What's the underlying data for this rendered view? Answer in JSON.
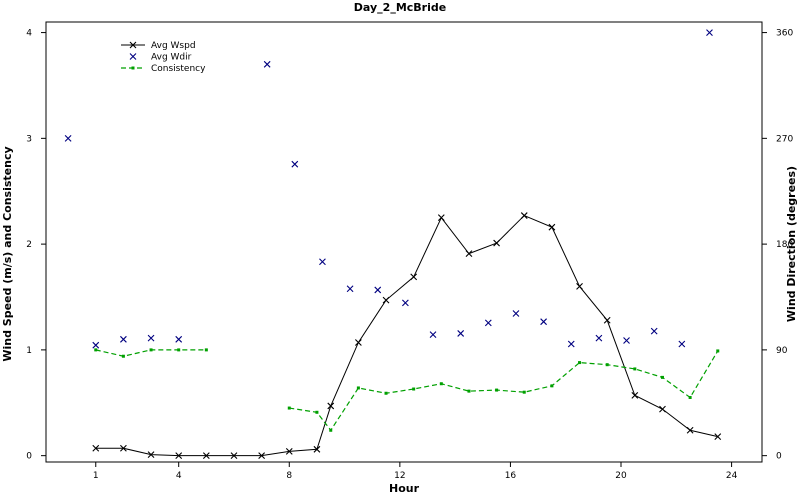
{
  "chart_data": {
    "type": "line",
    "title": "Day_2_McBride",
    "xlabel": "Hour",
    "ylabel_left": "Wind Speed (m/s) and Consistency",
    "ylabel_right": "Wind Direction (degrees)",
    "xlim": [
      -0.8,
      25.1
    ],
    "ylim_left": [
      -0.06,
      4.1
    ],
    "ylim_right": [
      -5.4,
      369
    ],
    "x_ticks": [
      1,
      4,
      8,
      12,
      16,
      20,
      24
    ],
    "y_ticks_left": [
      0,
      1,
      2,
      3,
      4
    ],
    "y_ticks_right": [
      0,
      90,
      180,
      270,
      360
    ],
    "legend": {
      "position": "top-left",
      "entries": [
        {
          "label": "Avg Wspd",
          "style": "line-x",
          "color": "#000000"
        },
        {
          "label": "Avg Wdir",
          "style": "x",
          "color": "#000080"
        },
        {
          "label": "Consistency",
          "style": "dashed-dot",
          "color": "#00a000"
        }
      ]
    },
    "series": [
      {
        "name": "Avg Wspd",
        "axis": "left",
        "color": "#000000",
        "points": [
          [
            1,
            0.07
          ],
          [
            2,
            0.07
          ],
          [
            3,
            0.01
          ],
          [
            4,
            0.0
          ],
          [
            5,
            0.0
          ],
          [
            6,
            0.0
          ],
          [
            7,
            0.0
          ],
          [
            8,
            0.04
          ],
          [
            9,
            0.06
          ],
          [
            9.5,
            0.47
          ],
          [
            10.5,
            1.07
          ],
          [
            11.5,
            1.47
          ],
          [
            12.5,
            1.69
          ],
          [
            13.5,
            2.25
          ],
          [
            14.5,
            1.91
          ],
          [
            15.5,
            2.01
          ],
          [
            16.5,
            2.27
          ],
          [
            17.5,
            2.16
          ],
          [
            18.5,
            1.6
          ],
          [
            19.5,
            1.28
          ],
          [
            20.5,
            0.57
          ],
          [
            21.5,
            0.44
          ],
          [
            22.5,
            0.24
          ],
          [
            23.5,
            0.18
          ]
        ]
      },
      {
        "name": "Avg Wdir",
        "axis": "right",
        "color": "#000080",
        "points": [
          [
            0,
            270
          ],
          [
            1,
            94
          ],
          [
            2,
            99
          ],
          [
            3,
            100
          ],
          [
            4,
            99
          ],
          [
            7.2,
            333
          ],
          [
            8.2,
            248
          ],
          [
            9.2,
            165
          ],
          [
            10.2,
            142
          ],
          [
            11.2,
            141
          ],
          [
            12.2,
            130
          ],
          [
            13.2,
            103
          ],
          [
            14.2,
            104
          ],
          [
            15.2,
            113
          ],
          [
            16.2,
            121
          ],
          [
            17.2,
            114
          ],
          [
            18.2,
            95
          ],
          [
            19.2,
            100
          ],
          [
            20.2,
            98
          ],
          [
            21.2,
            106
          ],
          [
            22.2,
            95
          ],
          [
            23.2,
            360
          ]
        ]
      },
      {
        "name": "Consistency",
        "axis": "left",
        "color": "#00a000",
        "segments": [
          [
            [
              1,
              1.0
            ],
            [
              2,
              0.94
            ],
            [
              3,
              1.0
            ],
            [
              4,
              1.0
            ],
            [
              5,
              1.0
            ]
          ],
          [
            [
              8,
              0.45
            ],
            [
              9,
              0.41
            ],
            [
              9.5,
              0.24
            ],
            [
              10.5,
              0.64
            ],
            [
              11.5,
              0.59
            ],
            [
              12.5,
              0.63
            ],
            [
              13.5,
              0.68
            ],
            [
              14.5,
              0.61
            ],
            [
              15.5,
              0.62
            ],
            [
              16.5,
              0.6
            ],
            [
              17.5,
              0.66
            ],
            [
              18.5,
              0.88
            ],
            [
              19.5,
              0.86
            ],
            [
              20.5,
              0.82
            ],
            [
              21.5,
              0.74
            ],
            [
              22.5,
              0.55
            ],
            [
              23.5,
              0.99
            ]
          ]
        ]
      }
    ]
  }
}
